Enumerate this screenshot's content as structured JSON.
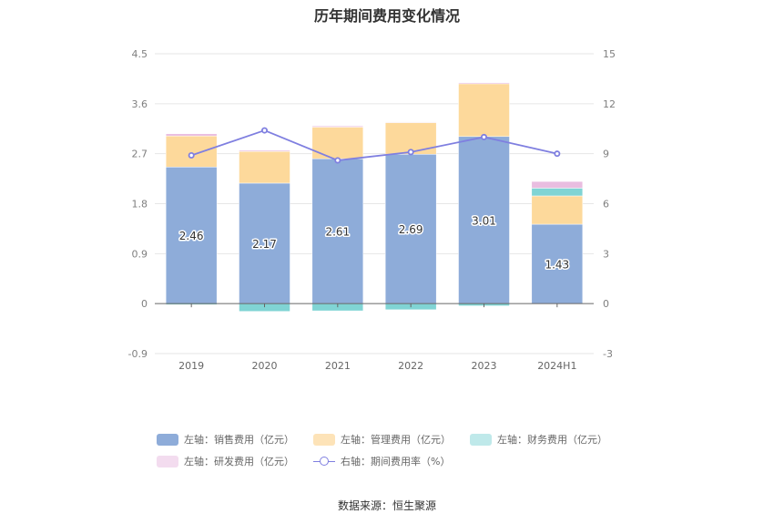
{
  "page": {
    "title": "历年期间费用变化情况",
    "source": "数据来源：恒生聚源"
  },
  "legend": [
    {
      "label": "左轴：销售费用（亿元）",
      "color": "#8eacd9",
      "type": "bar"
    },
    {
      "label": "左轴：管理费用（亿元）",
      "color": "#fdd99b",
      "type": "bar"
    },
    {
      "label": "左轴：财务费用（亿元）",
      "color": "#80d4d4",
      "type": "bar"
    },
    {
      "label": "左轴：研发费用（亿元）",
      "color": "#e9bde0",
      "type": "bar"
    },
    {
      "label": "右轴：期间费用率（%）",
      "color": "#7f7fe0",
      "type": "line"
    }
  ],
  "chart_data": {
    "type": "bar",
    "stacked": true,
    "title": "历年期间费用变化情况",
    "categories": [
      "2019",
      "2020",
      "2021",
      "2022",
      "2023",
      "2024H1"
    ],
    "y_left": {
      "min": -0.9,
      "max": 4.5,
      "ticks": [
        "-0.9",
        "0",
        "0.9",
        "1.8",
        "2.7",
        "3.6",
        "4.5"
      ]
    },
    "y_right": {
      "min": -3,
      "max": 15,
      "ticks": [
        "-3",
        "0",
        "3",
        "6",
        "9",
        "12",
        "15"
      ]
    },
    "series": [
      {
        "name": "左轴：销售费用（亿元）",
        "axis": "left",
        "color": "#8eacd9",
        "values": [
          2.46,
          2.17,
          2.61,
          2.69,
          3.01,
          1.43
        ],
        "labels": [
          "2.46",
          "2.17",
          "2.61",
          "2.69",
          "3.01",
          "1.43"
        ]
      },
      {
        "name": "左轴：管理费用（亿元）",
        "axis": "left",
        "color": "#fdd99b",
        "values": [
          0.56,
          0.57,
          0.57,
          0.57,
          0.95,
          0.51
        ]
      },
      {
        "name": "左轴：财务费用（亿元）",
        "axis": "left",
        "color": "#80d4d4",
        "values": [
          -0.02,
          -0.14,
          -0.13,
          -0.11,
          -0.04,
          0.14
        ]
      },
      {
        "name": "左轴：研发费用（亿元）",
        "axis": "left",
        "color": "#e9bde0",
        "values": [
          0.04,
          0.02,
          0.02,
          0.01,
          0.02,
          0.12
        ]
      },
      {
        "name": "右轴：期间费用率（%）",
        "axis": "right",
        "type": "line",
        "color": "#7f7fe0",
        "values": [
          8.9,
          10.4,
          8.6,
          9.1,
          10.0,
          9.0
        ]
      }
    ],
    "grid": true,
    "legend_position": "bottom"
  }
}
